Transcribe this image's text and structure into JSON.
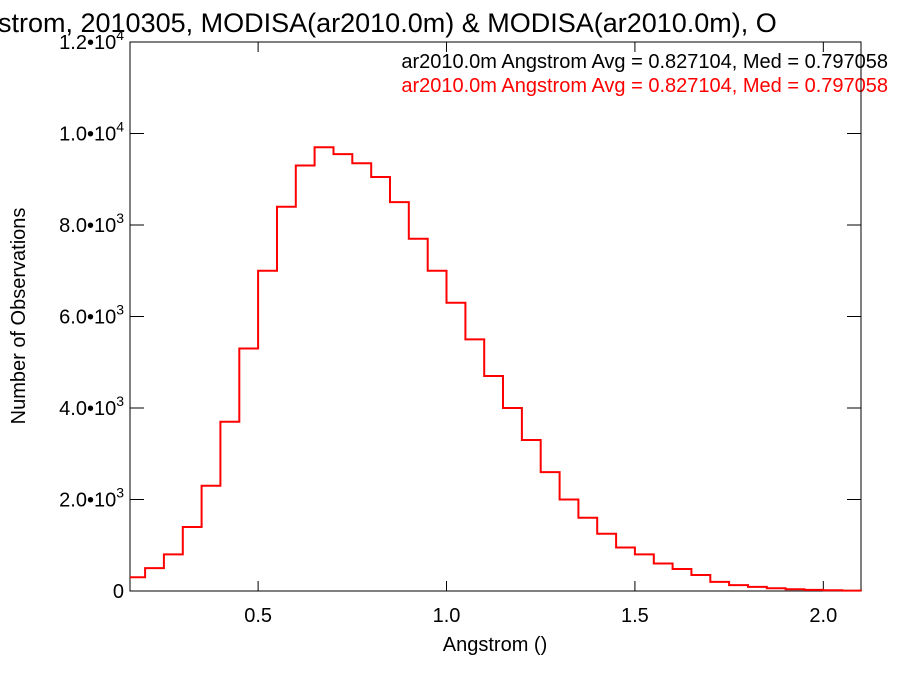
{
  "chart_data": {
    "type": "line",
    "title": "strom, 2010305, MODISA(ar2010.0m) & MODISA(ar2010.0m), O",
    "xlabel": "Angstrom ()",
    "ylabel": "Number of Observations",
    "xlim": [
      0.16,
      2.1
    ],
    "ylim": [
      0,
      12000
    ],
    "step": true,
    "grid": false,
    "x_ticks": [
      0.5,
      1.0,
      1.5,
      2.0
    ],
    "x_tick_labels": [
      "0.5",
      "1.0",
      "1.5",
      "2.0"
    ],
    "y_ticks": [
      0,
      2000,
      4000,
      6000,
      8000,
      10000,
      12000
    ],
    "y_tick_labels": [
      {
        "mantissa": "0",
        "exp": ""
      },
      {
        "mantissa": "2.0•10",
        "exp": "3"
      },
      {
        "mantissa": "4.0•10",
        "exp": "3"
      },
      {
        "mantissa": "6.0•10",
        "exp": "3"
      },
      {
        "mantissa": "8.0•10",
        "exp": "3"
      },
      {
        "mantissa": "1.0•10",
        "exp": "4"
      },
      {
        "mantissa": "1.2•10",
        "exp": "4"
      }
    ],
    "legend_placement": "top-right",
    "annotations": [
      {
        "text": "ar2010.0m Angstrom Avg = 0.827104, Med = 0.797058",
        "color": "#000000"
      },
      {
        "text": "ar2010.0m Angstrom Avg = 0.827104, Med = 0.797058",
        "color": "#ff0000"
      }
    ],
    "series": [
      {
        "color": "#ff0000",
        "x": [
          0.16,
          0.2,
          0.25,
          0.3,
          0.35,
          0.4,
          0.45,
          0.5,
          0.55,
          0.6,
          0.65,
          0.7,
          0.75,
          0.8,
          0.85,
          0.9,
          0.95,
          1.0,
          1.05,
          1.1,
          1.15,
          1.2,
          1.25,
          1.3,
          1.35,
          1.4,
          1.45,
          1.5,
          1.55,
          1.6,
          1.65,
          1.7,
          1.75,
          1.8,
          1.85,
          1.9,
          1.95,
          2.0,
          2.05,
          2.1
        ],
        "y": [
          300,
          500,
          800,
          1400,
          2300,
          3700,
          5300,
          7000,
          8400,
          9300,
          9700,
          9550,
          9350,
          9050,
          8500,
          7700,
          7000,
          6300,
          5500,
          4700,
          4000,
          3300,
          2600,
          2000,
          1600,
          1250,
          950,
          800,
          600,
          480,
          350,
          200,
          130,
          90,
          60,
          40,
          25,
          15,
          8,
          5
        ]
      }
    ]
  }
}
